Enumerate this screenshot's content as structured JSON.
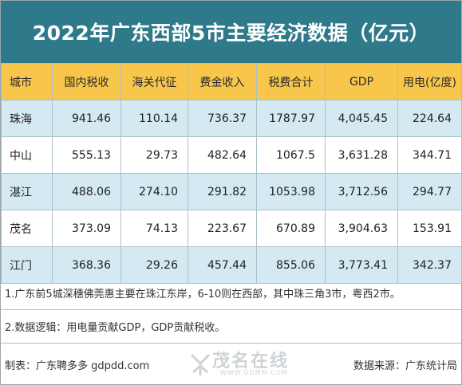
{
  "title": "2022年广东西部5市主要经济数据（亿元）",
  "colors": {
    "title_bg": "#2e7a8a",
    "header_bg": "#f7c64a",
    "row_alt_bg": "#d4e9f1"
  },
  "table": {
    "headers": [
      "城市",
      "国内税收",
      "海关代征",
      "费金收入",
      "税费合计",
      "GDP",
      "用电(亿度)"
    ],
    "rows": [
      [
        "珠海",
        "941.46",
        "110.14",
        "736.37",
        "1787.97",
        "4,045.45",
        "224.64"
      ],
      [
        "中山",
        "555.13",
        "29.73",
        "482.64",
        "1067.5",
        "3,631.28",
        "344.71"
      ],
      [
        "湛江",
        "488.06",
        "274.10",
        "291.82",
        "1053.98",
        "3,712.56",
        "294.77"
      ],
      [
        "茂名",
        "373.09",
        "74.13",
        "223.67",
        "670.89",
        "3,904.63",
        "153.91"
      ],
      [
        "江门",
        "368.36",
        "29.26",
        "457.44",
        "855.06",
        "3,773.41",
        "342.37"
      ]
    ]
  },
  "notes": [
    "1.广东前5城深穗佛莞惠主要在珠江东岸，6-10则在西部，其中珠三角3市，粤西2市。",
    "2.数据逻辑：用电量贡献GDP，GDP贡献税收。"
  ],
  "footer": {
    "maker": "制表：广东聘多多 gdpdd.com",
    "source": "数据来源：广东统计局"
  },
  "watermark": {
    "text": "茂名在线",
    "url": "WWW.GDMM.COM"
  }
}
